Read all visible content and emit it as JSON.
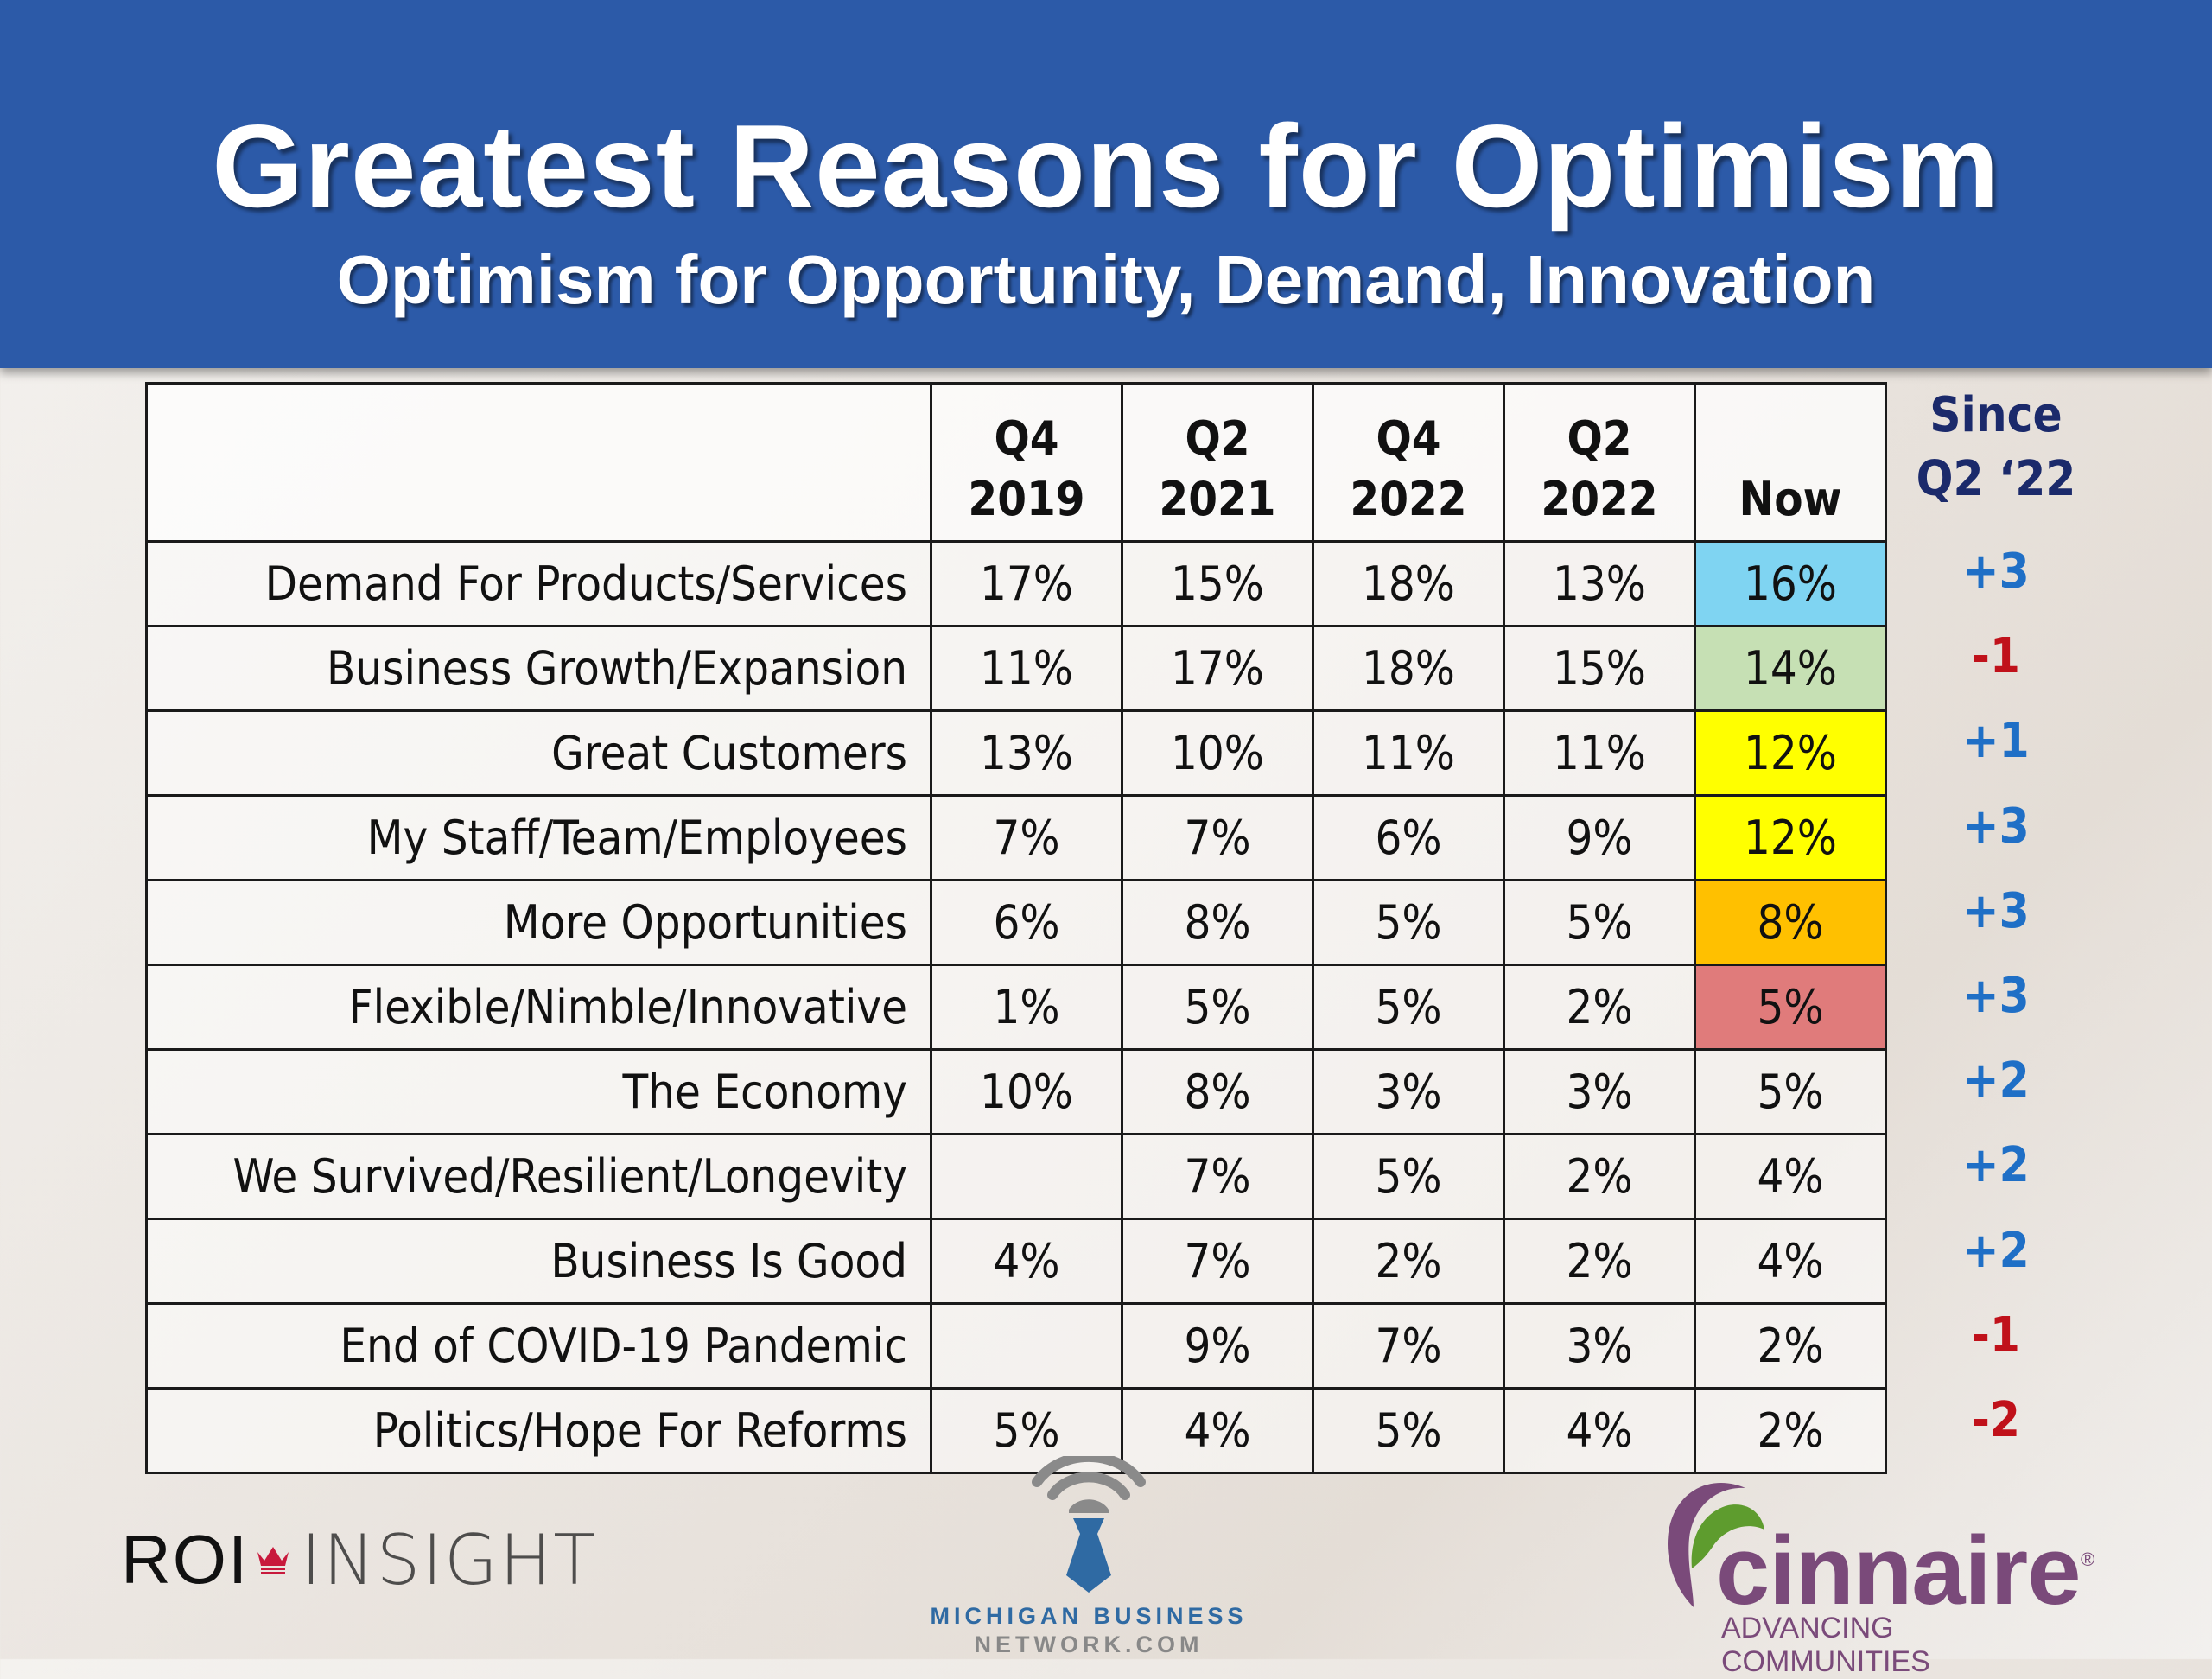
{
  "header": {
    "title": "Greatest Reasons for Optimism",
    "subtitle": "Optimism for Opportunity, Demand, Innovation"
  },
  "colors": {
    "header_bg": "#2c5aa8",
    "positive_delta": "#1f6fc6",
    "negative_delta": "#c0111a",
    "since_header": "#1b2a6b",
    "highlight_blue": "#7fd4f2",
    "highlight_green": "#c6e0b4",
    "highlight_yellow": "#ffff00",
    "highlight_orange": "#ffc000",
    "highlight_red": "#e07b7b"
  },
  "since": {
    "line1": "Since",
    "line2": "Q2 ‘22"
  },
  "chart_data": {
    "type": "table",
    "title": "Greatest Reasons for Optimism",
    "subtitle": "Optimism for Opportunity, Demand, Innovation",
    "columns": [
      {
        "line1": "Q4",
        "line2": "2019"
      },
      {
        "line1": "Q2",
        "line2": "2021"
      },
      {
        "line1": "Q4",
        "line2": "2022"
      },
      {
        "line1": "Q2",
        "line2": "2022"
      },
      {
        "line1": "",
        "line2": "Now"
      }
    ],
    "change_column": "Since Q2 ‘22",
    "rows": [
      {
        "label": "Demand For Products/Services",
        "values": [
          "17%",
          "15%",
          "18%",
          "13%",
          "16%"
        ],
        "now_highlight": "#7fd4f2",
        "change": "+3"
      },
      {
        "label": "Business Growth/Expansion",
        "values": [
          "11%",
          "17%",
          "18%",
          "15%",
          "14%"
        ],
        "now_highlight": "#c6e0b4",
        "change": "-1"
      },
      {
        "label": "Great Customers",
        "values": [
          "13%",
          "10%",
          "11%",
          "11%",
          "12%"
        ],
        "now_highlight": "#ffff00",
        "change": "+1"
      },
      {
        "label": "My Staff/Team/Employees",
        "values": [
          "7%",
          "7%",
          "6%",
          "9%",
          "12%"
        ],
        "now_highlight": "#ffff00",
        "change": "+3"
      },
      {
        "label": "More Opportunities",
        "values": [
          "6%",
          "8%",
          "5%",
          "5%",
          "8%"
        ],
        "now_highlight": "#ffc000",
        "change": "+3"
      },
      {
        "label": "Flexible/Nimble/Innovative",
        "values": [
          "1%",
          "5%",
          "5%",
          "2%",
          "5%"
        ],
        "now_highlight": "#e07b7b",
        "change": "+3"
      },
      {
        "label": "The Economy",
        "values": [
          "10%",
          "8%",
          "3%",
          "3%",
          "5%"
        ],
        "now_highlight": null,
        "change": "+2"
      },
      {
        "label": "We Survived/Resilient/Longevity",
        "values": [
          "",
          "7%",
          "5%",
          "2%",
          "4%"
        ],
        "now_highlight": null,
        "change": "+2"
      },
      {
        "label": "Business Is Good",
        "values": [
          "4%",
          "7%",
          "2%",
          "2%",
          "4%"
        ],
        "now_highlight": null,
        "change": "+2"
      },
      {
        "label": "End of COVID-19 Pandemic",
        "values": [
          "",
          "9%",
          "7%",
          "3%",
          "2%"
        ],
        "now_highlight": null,
        "change": "-1"
      },
      {
        "label": "Politics/Hope For Reforms",
        "values": [
          "5%",
          "4%",
          "5%",
          "4%",
          "2%"
        ],
        "now_highlight": null,
        "change": "-2"
      }
    ]
  },
  "footer": {
    "roi_left": "ROI",
    "roi_right": "INSIGHT",
    "mbn_line1": "MICHIGAN BUSINESS",
    "mbn_line2": "NETWORK.COM",
    "cinnaire_word": "cinnaire",
    "cinnaire_reg": "®",
    "cinnaire_tagline": "ADVANCING COMMUNITIES"
  }
}
